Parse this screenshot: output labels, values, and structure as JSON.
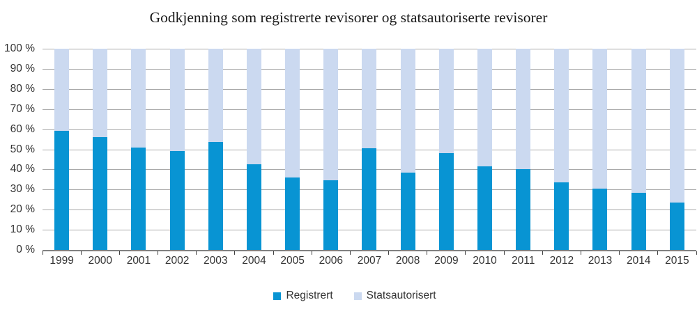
{
  "title": "Godkjenning som registrerte revisorer og statsautoriserte revisorer",
  "colors": {
    "registrert": "#0894d3",
    "statsautorisert": "#cbd9f0",
    "gridline": "#a9a9a9",
    "axis": "#404040",
    "label_text": "#333333"
  },
  "legend": {
    "items": [
      {
        "label": "Registrert",
        "color": "#0894d3"
      },
      {
        "label": "Statsautorisert",
        "color": "#cbd9f0"
      }
    ]
  },
  "chart_data": {
    "type": "bar",
    "subtype": "stacked-100",
    "title": "Godkjenning som registrerte revisorer og statsautoriserte revisorer",
    "xlabel": "",
    "ylabel": "",
    "ylim": [
      0,
      100
    ],
    "grid": "horizontal",
    "legend_position": "bottom",
    "yticks": [
      "0 %",
      "10 %",
      "20 %",
      "30 %",
      "40 %",
      "50 %",
      "60 %",
      "70 %",
      "80 %",
      "90 %",
      "100 %"
    ],
    "categories": [
      "1999",
      "2000",
      "2001",
      "2002",
      "2003",
      "2004",
      "2005",
      "2006",
      "2007",
      "2008",
      "2009",
      "2010",
      "2011",
      "2012",
      "2013",
      "2014",
      "2015"
    ],
    "series": [
      {
        "name": "Registrert",
        "values": [
          59,
          56,
          51,
          49,
          53.5,
          42.5,
          36,
          34.5,
          50.5,
          38.5,
          48,
          41.5,
          40,
          33.5,
          30.5,
          28.5,
          23.5
        ]
      },
      {
        "name": "Statsautorisert",
        "values": [
          41,
          44,
          49,
          51,
          46.5,
          57.5,
          64,
          65.5,
          49.5,
          61.5,
          52,
          58.5,
          60,
          66.5,
          69.5,
          71.5,
          76.5
        ]
      }
    ]
  }
}
